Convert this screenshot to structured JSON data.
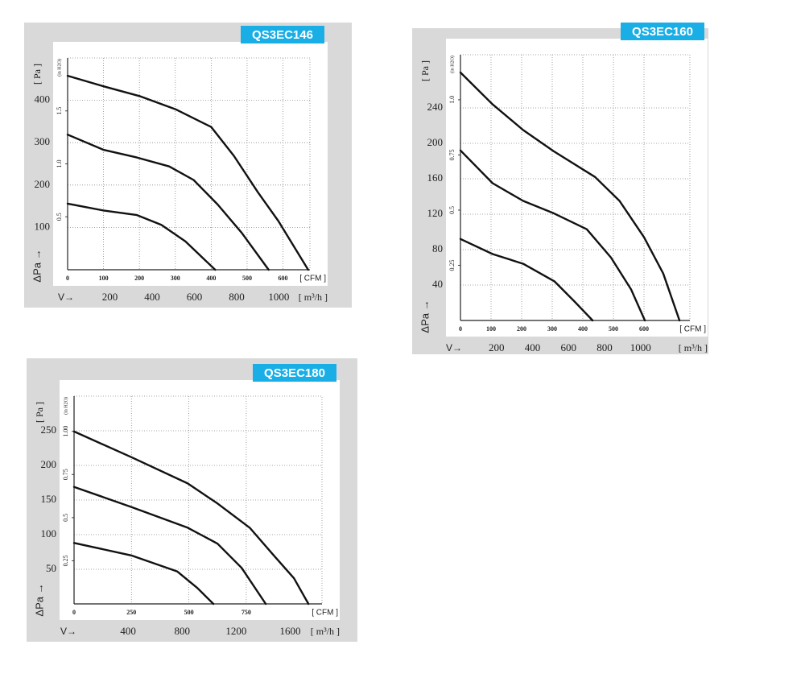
{
  "chart_data": [
    {
      "type": "line",
      "title": "QS3EC146",
      "ylabel": "[ Pa ]",
      "y2label": "(in H2O)",
      "xlabel": "[ CFM ]",
      "x2label": "[ m³/h ]",
      "y_symbol": "ΔPa →",
      "x_symbol": "V→",
      "xlim": [
        0,
        675
      ],
      "xticks": [
        0,
        100,
        200,
        300,
        400,
        500,
        600
      ],
      "x2lim": [
        0,
        1147
      ],
      "x2ticks": [
        200,
        400,
        600,
        800,
        1000
      ],
      "ylim": [
        0,
        500
      ],
      "yticks": [
        100,
        200,
        300,
        400
      ],
      "y2lim": [
        0,
        2.0
      ],
      "y2ticks": [
        0.5,
        {
          "value": 1,
          "label": "1.0"
        },
        1.5
      ],
      "grid": true,
      "series": [
        {
          "color": "#111111",
          "x": [
            0,
            100,
            200,
            300,
            400,
            463,
            530,
            587,
            670
          ],
          "values": [
            458,
            433,
            410,
            379,
            337,
            269,
            183,
            115,
            0
          ]
        },
        {
          "color": "#111111",
          "x": [
            0,
            100,
            193,
            283,
            351,
            418,
            485,
            560
          ],
          "values": [
            319,
            283,
            265,
            244,
            212,
            154,
            87,
            0
          ]
        },
        {
          "color": "#111111",
          "x": [
            0,
            100,
            193,
            261,
            328,
            411
          ],
          "values": [
            156,
            140,
            129,
            106,
            67,
            0
          ]
        }
      ]
    },
    {
      "type": "line",
      "title": "QS3EC160",
      "ylabel": "[ Pa ]",
      "y2label": "(in H2O)",
      "xlabel": "[ CFM ]",
      "x2label": "[ m³/h ]",
      "y_symbol": "ΔPa →",
      "x_symbol": "V→",
      "xlim": [
        0,
        750
      ],
      "xticks": [
        0,
        100,
        200,
        300,
        400,
        500,
        600
      ],
      "x2lim": [
        0,
        1274
      ],
      "x2ticks": [
        200,
        400,
        600,
        800,
        1000
      ],
      "ylim": [
        0,
        300
      ],
      "yticks": [
        40,
        80,
        120,
        160,
        200,
        240
      ],
      "y2lim": [
        0,
        1.204
      ],
      "y2ticks": [
        0.25,
        0.5,
        0.75,
        {
          "value": 1,
          "label": "1.0"
        }
      ],
      "grid": true,
      "series": [
        {
          "color": "#111111",
          "x": [
            0,
            105,
            205,
            305,
            440,
            520,
            600,
            663,
            716
          ],
          "values": [
            280,
            244,
            215,
            191,
            162,
            135,
            94,
            53,
            0
          ]
        },
        {
          "color": "#111111",
          "x": [
            0,
            105,
            205,
            305,
            413,
            492,
            558,
            603
          ],
          "values": [
            192,
            155,
            135,
            121,
            103,
            71,
            35,
            0
          ]
        },
        {
          "color": "#111111",
          "x": [
            0,
            105,
            205,
            308,
            374,
            432
          ],
          "values": [
            92,
            75,
            64,
            44,
            21,
            0
          ]
        }
      ]
    },
    {
      "type": "line",
      "title": "QS3EC180",
      "ylabel": "[ Pa ]",
      "y2label": "(in H2O)",
      "xlabel": "[ CFM ]",
      "x2label": "[ m³/h ]",
      "y_symbol": "ΔPa →",
      "x_symbol": "V→",
      "xlim": [
        0,
        1080
      ],
      "xticks": [
        0,
        250,
        500,
        750
      ],
      "x2lim": [
        0,
        1835
      ],
      "x2ticks": [
        400,
        800,
        1200,
        1600
      ],
      "ylim": [
        0,
        300
      ],
      "yticks": [
        50,
        100,
        150,
        200,
        250
      ],
      "y2lim": [
        0,
        1.204
      ],
      "y2ticks": [
        0.25,
        0.5,
        0.75,
        {
          "value": 1,
          "label": "1.00"
        }
      ],
      "grid": true,
      "series": [
        {
          "color": "#111111",
          "x": [
            0,
            249,
            495,
            625,
            765,
            870,
            958,
            1021
          ],
          "values": [
            249,
            212,
            174,
            145,
            110,
            70,
            37,
            0
          ]
        },
        {
          "color": "#111111",
          "x": [
            0,
            249,
            495,
            625,
            730,
            835
          ],
          "values": [
            169,
            140,
            110,
            87,
            52,
            0
          ]
        },
        {
          "color": "#111111",
          "x": [
            0,
            249,
            449,
            537,
            607
          ],
          "values": [
            88,
            70,
            47,
            23,
            0
          ]
        }
      ]
    }
  ]
}
